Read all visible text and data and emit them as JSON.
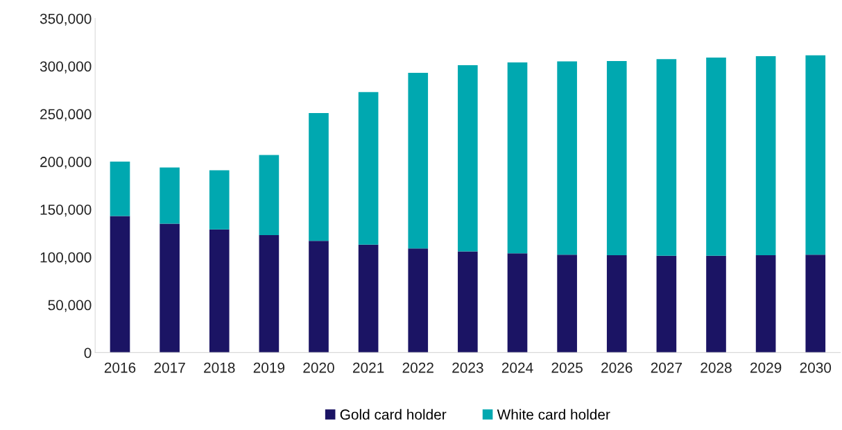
{
  "chart_data": {
    "type": "bar",
    "stacked": true,
    "categories": [
      "2016",
      "2017",
      "2018",
      "2019",
      "2020",
      "2021",
      "2022",
      "2023",
      "2024",
      "2025",
      "2026",
      "2027",
      "2028",
      "2029",
      "2030"
    ],
    "series": [
      {
        "name": "Gold card holder",
        "color": "#1b1464",
        "values": [
          143000,
          135000,
          129000,
          123000,
          117000,
          113000,
          109000,
          106000,
          104000,
          102500,
          102000,
          101500,
          101500,
          102000,
          102500
        ]
      },
      {
        "name": "White card holder",
        "color": "#00a8b0",
        "values": [
          57000,
          59000,
          62000,
          84000,
          134000,
          160000,
          184000,
          195000,
          200000,
          202500,
          203500,
          206000,
          207500,
          208500,
          209000
        ]
      }
    ],
    "ylim": [
      0,
      350000
    ],
    "yticks": [
      {
        "value": 0,
        "label": "0"
      },
      {
        "value": 50000,
        "label": "50,000"
      },
      {
        "value": 100000,
        "label": "100,000"
      },
      {
        "value": 150000,
        "label": "150,000"
      },
      {
        "value": 200000,
        "label": "200,000"
      },
      {
        "value": 250000,
        "label": "250,000"
      },
      {
        "value": 300000,
        "label": "300,000"
      },
      {
        "value": 350000,
        "label": "350,000"
      }
    ],
    "grid": false,
    "legend": "bottom"
  }
}
